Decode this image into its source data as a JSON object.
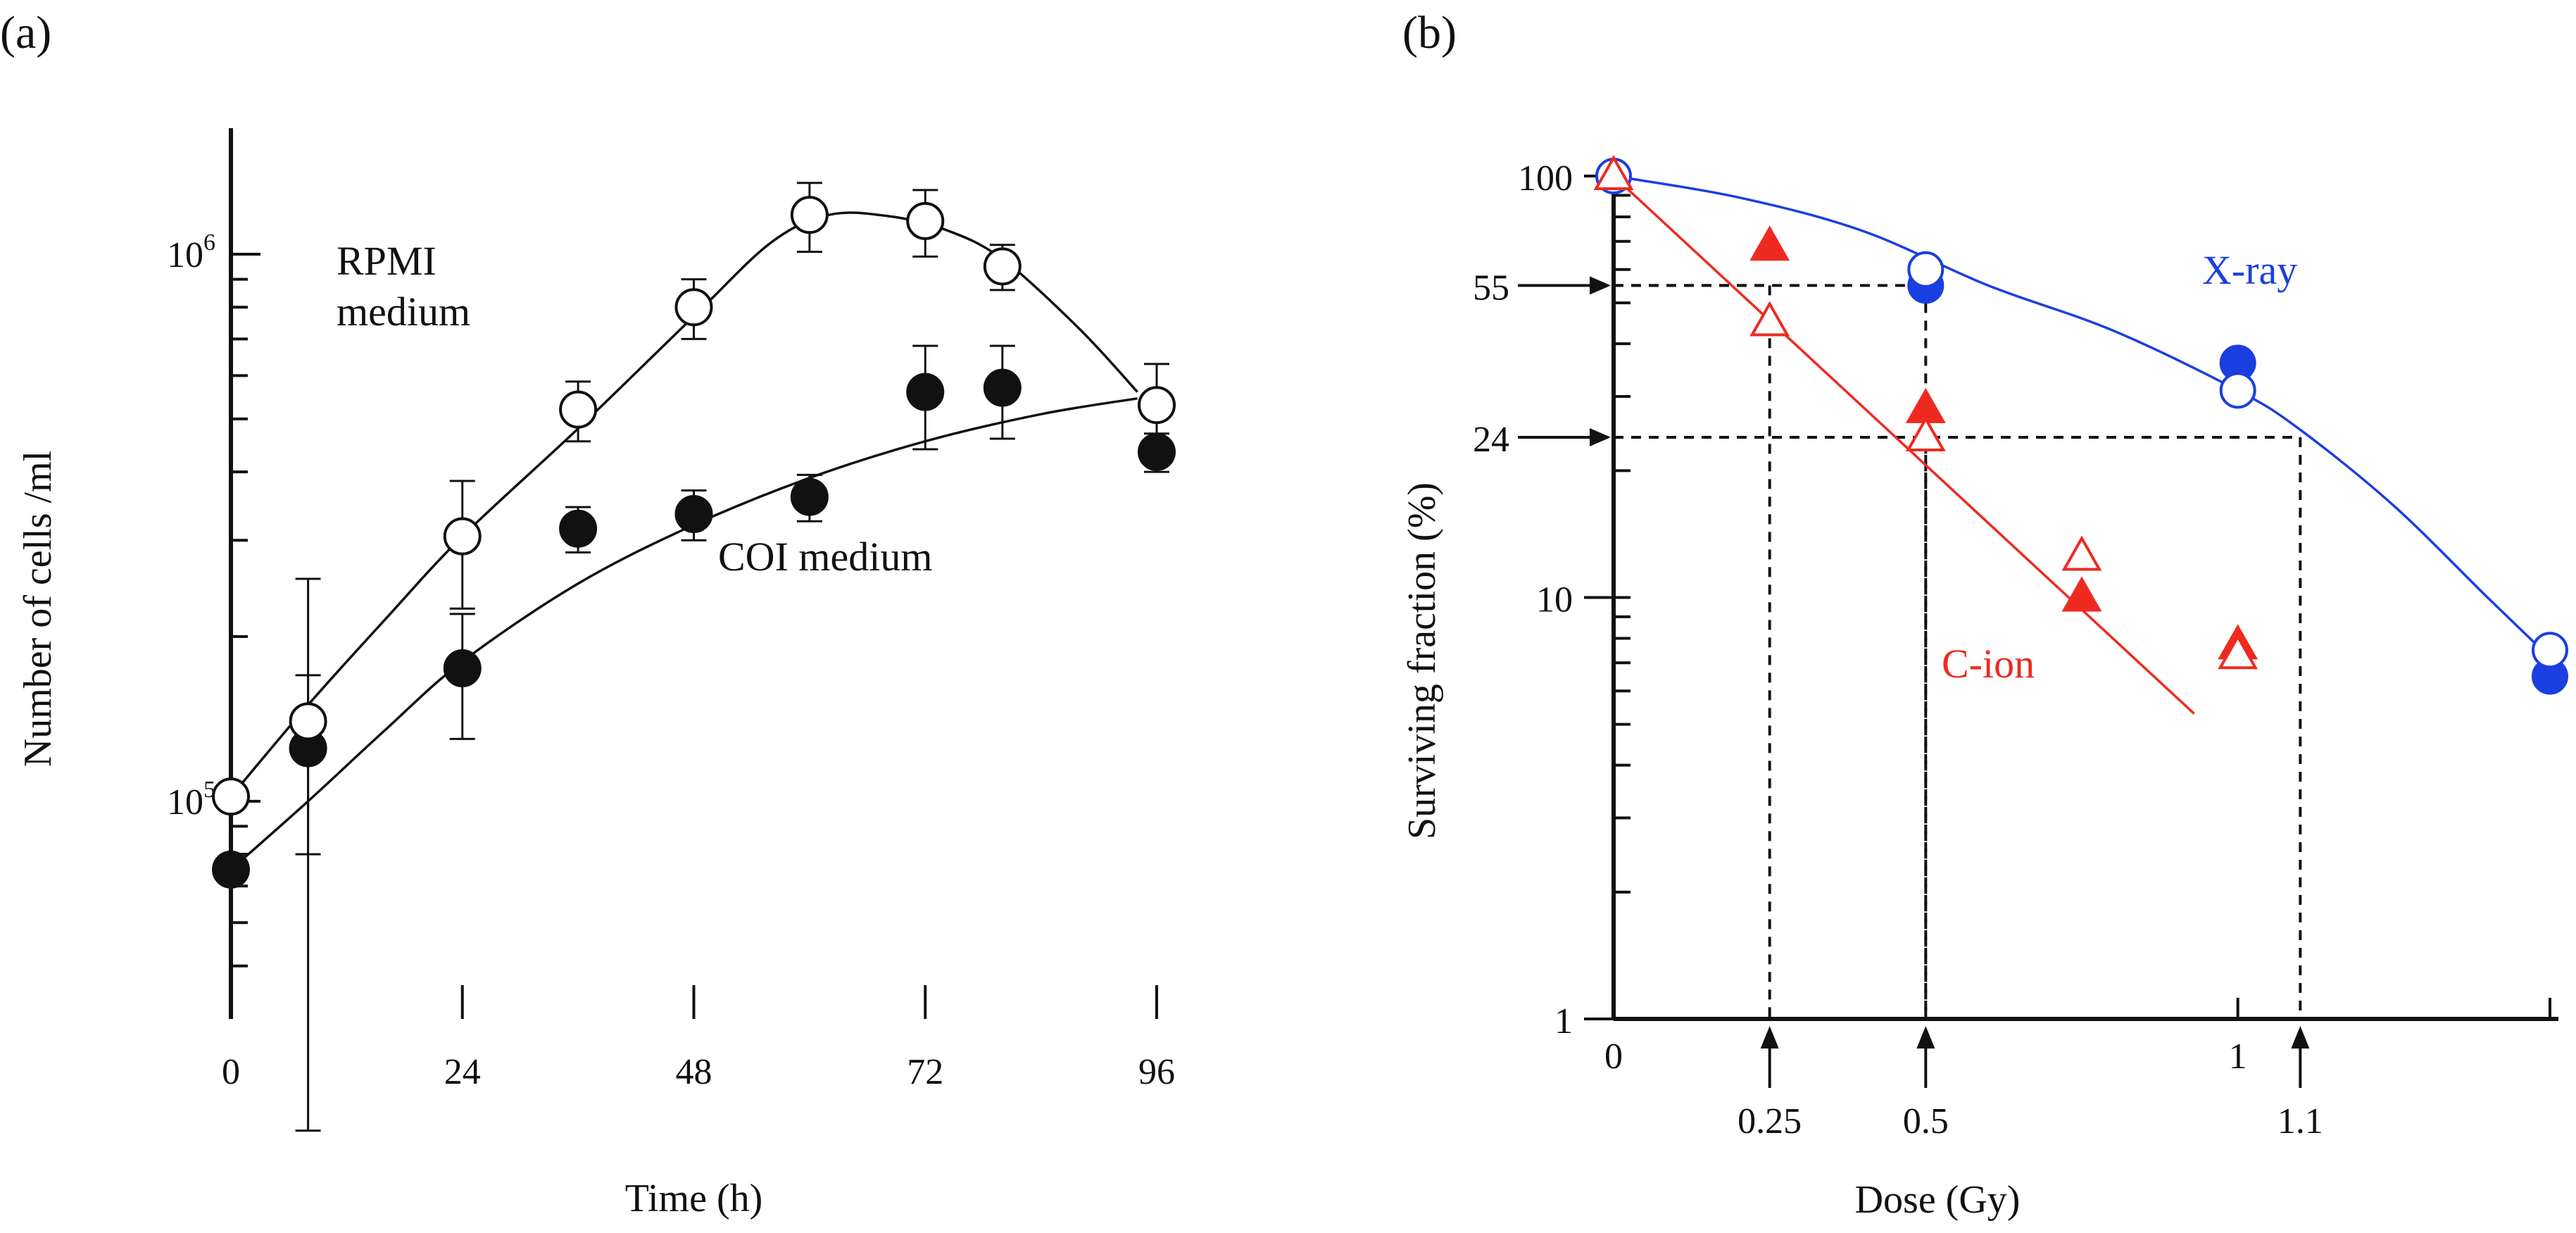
{
  "chart_data": [
    {
      "panel": "(a)",
      "type": "scatter",
      "title": "",
      "xlabel": "Time (h)",
      "ylabel": "Number of cells /ml",
      "xlim": [
        0,
        96
      ],
      "ylim": [
        40000,
        1700000
      ],
      "yscale": "log",
      "xticks": [
        "0",
        "24",
        "48",
        "72",
        "96"
      ],
      "yticks": [
        {
          "value": 100000,
          "base": "10",
          "exp": "5"
        },
        {
          "value": 1000000,
          "base": "10",
          "exp": "6"
        }
      ],
      "series": [
        {
          "name": "RPMI medium",
          "label_lines": [
            "RPMI",
            "medium"
          ],
          "marker": "open-circle",
          "color": "#111111",
          "x": [
            0,
            8,
            24,
            36,
            48,
            60,
            72,
            80,
            96
          ],
          "y": [
            102000,
            140000,
            305000,
            520000,
            800000,
            1180000,
            1150000,
            950000,
            530000
          ],
          "err": [
            0,
            115000,
            80000,
            65000,
            100000,
            170000,
            160000,
            90000,
            100000
          ],
          "curve": [
            [
              0,
              102000
            ],
            [
              8,
              150000
            ],
            [
              16,
              215000
            ],
            [
              24,
              305000
            ],
            [
              36,
              480000
            ],
            [
              48,
              770000
            ],
            [
              56,
              1050000
            ],
            [
              62,
              1180000
            ],
            [
              68,
              1175000
            ],
            [
              74,
              1110000
            ],
            [
              80,
              980000
            ],
            [
              88,
              730000
            ],
            [
              94,
              560000
            ]
          ]
        },
        {
          "name": "COI medium",
          "label_lines": [
            "COI medium"
          ],
          "marker": "filled-circle",
          "color": "#111111",
          "x": [
            0,
            8,
            24,
            36,
            48,
            60,
            72,
            80,
            96
          ],
          "y": [
            75000,
            125000,
            175000,
            315000,
            335000,
            360000,
            560000,
            570000,
            435000
          ],
          "err": [
            0,
            45000,
            45000,
            30000,
            35000,
            35000,
            120000,
            110000,
            35000
          ],
          "curve": [
            [
              0,
              75000
            ],
            [
              8,
              100000
            ],
            [
              16,
              135000
            ],
            [
              24,
              180000
            ],
            [
              36,
              250000
            ],
            [
              48,
              320000
            ],
            [
              60,
              390000
            ],
            [
              72,
              455000
            ],
            [
              84,
              510000
            ],
            [
              94,
              545000
            ]
          ]
        }
      ]
    },
    {
      "panel": "(b)",
      "type": "scatter",
      "title": "",
      "xlabel": "Dose (Gy)",
      "ylabel": "Surviving fraction (%)",
      "xlim": [
        0,
        1.5
      ],
      "ylim": [
        1,
        100
      ],
      "yscale": "log",
      "xticks": [
        "0",
        "1"
      ],
      "yticks": [
        "1",
        "10",
        "100"
      ],
      "extra_yticks": [
        "55",
        "24"
      ],
      "dose_markers": [
        "0.25",
        "0.5",
        "1.1"
      ],
      "reference_lines": [
        {
          "x": 0.25,
          "y": 55
        },
        {
          "x": 0.5,
          "y": 55
        },
        {
          "x": 0.5,
          "y": 24
        },
        {
          "x": 1.1,
          "y": 24
        }
      ],
      "series": [
        {
          "name": "X-ray",
          "color": "#1a3fe0",
          "marker": "circle",
          "open_points": [
            {
              "x": 0,
              "y": 100
            },
            {
              "x": 0.5,
              "y": 60
            },
            {
              "x": 1,
              "y": 31
            },
            {
              "x": 1.5,
              "y": 7.5
            }
          ],
          "filled_points": [
            {
              "x": 0.5,
              "y": 55
            },
            {
              "x": 1,
              "y": 36
            },
            {
              "x": 1.5,
              "y": 6.5
            }
          ],
          "curve": [
            [
              0,
              100
            ],
            [
              0.2,
              89
            ],
            [
              0.4,
              74
            ],
            [
              0.6,
              55
            ],
            [
              0.8,
              43
            ],
            [
              1.0,
              31
            ],
            [
              1.1,
              25
            ],
            [
              1.25,
              16.5
            ],
            [
              1.4,
              10
            ],
            [
              1.5,
              7.2
            ]
          ]
        },
        {
          "name": "C-ion",
          "color": "#ee2a20",
          "marker": "triangle",
          "open_points": [
            {
              "x": 0,
              "y": 100
            },
            {
              "x": 0.25,
              "y": 45
            },
            {
              "x": 0.5,
              "y": 24
            },
            {
              "x": 0.75,
              "y": 12.5
            },
            {
              "x": 1,
              "y": 7.3
            }
          ],
          "filled_points": [
            {
              "x": 0.25,
              "y": 68
            },
            {
              "x": 0.5,
              "y": 28
            },
            {
              "x": 0.75,
              "y": 10
            },
            {
              "x": 1,
              "y": 7.7
            }
          ],
          "curve": [
            [
              0,
              100
            ],
            [
              0.93,
              5.3
            ]
          ]
        }
      ]
    }
  ]
}
